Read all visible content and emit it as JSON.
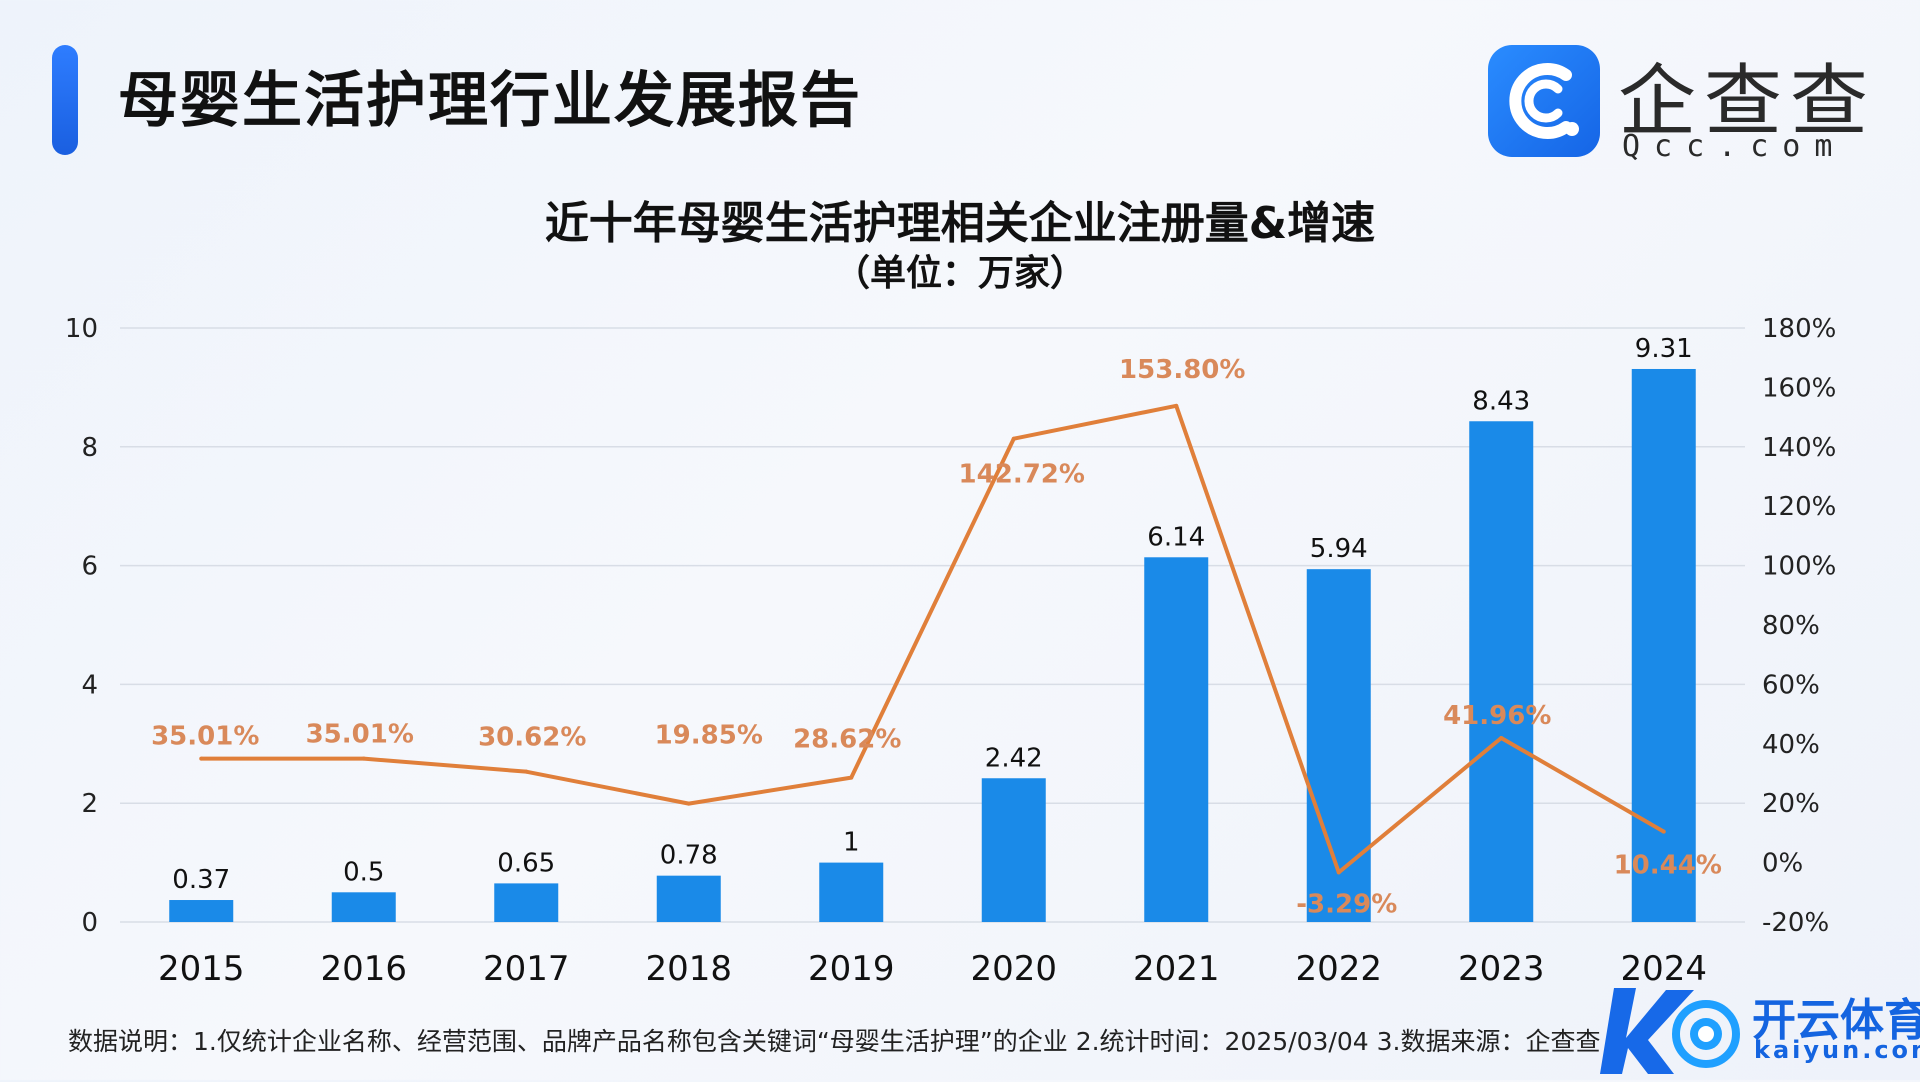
{
  "header": {
    "title": "母婴生活护理行业发展报告",
    "logo_name": "企查查",
    "logo_domain": "Qcc.com"
  },
  "colors": {
    "bar": "#1a8ae8",
    "line": "#e07f3a",
    "line_label": "#d9895a",
    "grid": "#d8dde6",
    "axis_text": "#222222"
  },
  "chart_data": {
    "type": "bar",
    "title": "近十年母婴生活护理相关企业注册量&增速",
    "subtitle": "（单位：万家）",
    "categories": [
      "2015",
      "2016",
      "2017",
      "2018",
      "2019",
      "2020",
      "2021",
      "2022",
      "2023",
      "2024"
    ],
    "series": [
      {
        "name": "注册量",
        "type": "bar",
        "axis": "left",
        "values": [
          0.37,
          0.5,
          0.65,
          0.78,
          1,
          2.42,
          6.14,
          5.94,
          8.43,
          9.31
        ],
        "labels": [
          "0.37",
          "0.5",
          "0.65",
          "0.78",
          "1",
          "2.42",
          "6.14",
          "5.94",
          "8.43",
          "9.31"
        ]
      },
      {
        "name": "增速",
        "type": "line",
        "axis": "right",
        "values": [
          35.01,
          35.01,
          30.62,
          19.85,
          28.62,
          142.72,
          153.8,
          -3.29,
          41.96,
          10.44
        ],
        "labels": [
          "35.01%",
          "35.01%",
          "30.62%",
          "19.85%",
          "28.62%",
          "142.72%",
          "153.80%",
          "-3.29%",
          "41.96%",
          "10.44%"
        ]
      }
    ],
    "y_left": {
      "min": 0,
      "max": 10,
      "ticks": [
        "0",
        "2",
        "4",
        "6",
        "8",
        "10"
      ]
    },
    "y_right": {
      "min": -20,
      "max": 180,
      "ticks": [
        "-20%",
        "0%",
        "20%",
        "40%",
        "60%",
        "80%",
        "100%",
        "120%",
        "140%",
        "160%",
        "180%"
      ]
    },
    "grid": true
  },
  "footnote": "数据说明：1.仅统计企业名称、经营范围、品牌产品名称包含关键词“母婴生活护理”的企业   2.统计时间：2025/03/04     3.数据来源：企查查",
  "watermark": {
    "name": "开云体育",
    "domain": "kaiyun.com"
  }
}
